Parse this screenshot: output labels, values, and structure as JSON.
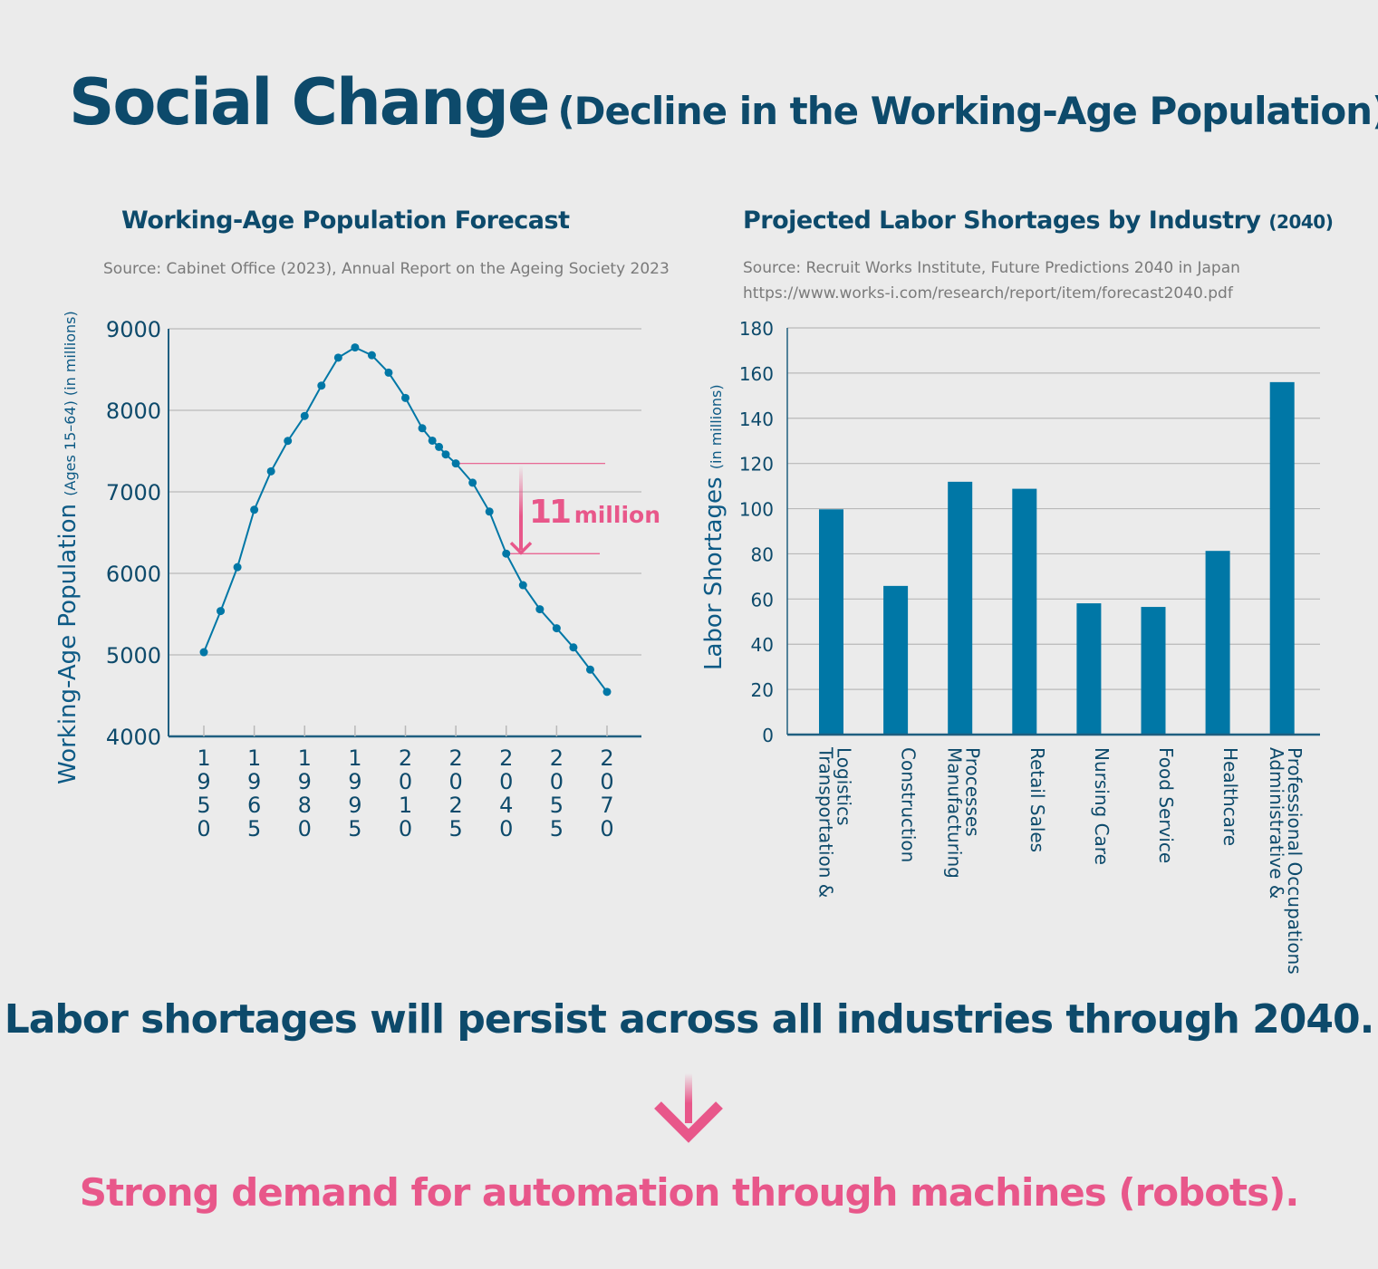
{
  "header": {
    "title": "Social Change",
    "subtitle": "(Decline in the Working-Age Population)"
  },
  "colors": {
    "dark": "#0d4a6b",
    "accent": "#e8578a",
    "series": "#0077a6",
    "grid": "#b9b9b9"
  },
  "left_panel": {
    "title": "Working-Age Population Forecast",
    "source": "Source: Cabinet Office (2023), Annual Report on the Ageing Society 2023",
    "annotation_number": "11",
    "annotation_unit": "million"
  },
  "right_panel": {
    "title": "Projected Labor Shortages by Industry",
    "title_suffix": "(2040)",
    "source_line1": "Source: Recruit Works Institute, Future Predictions 2040 in Japan",
    "source_line2": "https://www.works-i.com/research/report/item/forecast2040.pdf"
  },
  "footer": {
    "statement": "Labor shortages will persist across all industries through 2040.",
    "conclusion": "Strong demand for automation through machines (robots)."
  },
  "chart_data": [
    {
      "type": "line",
      "ylabel": "Working-Age Population",
      "ylabel_suffix": "(Ages 15–64) (in millions)",
      "xlabel": "",
      "ylim": [
        4000,
        9000
      ],
      "yticks": [
        4000,
        5000,
        6000,
        7000,
        8000,
        9000
      ],
      "xlim": [
        1950,
        2070
      ],
      "xticks": [
        "1950",
        "1965",
        "1980",
        "1995",
        "2010",
        "2025",
        "2040",
        "2055",
        "2070"
      ],
      "grid": true,
      "x": [
        1950,
        1955,
        1960,
        1965,
        1970,
        1975,
        1980,
        1985,
        1990,
        1995,
        2000,
        2005,
        2010,
        2015,
        2018,
        2020,
        2022,
        2025,
        2030,
        2035,
        2040,
        2045,
        2050,
        2055,
        2060,
        2065,
        2070
      ],
      "y": [
        5033,
        5538,
        6076,
        6780,
        7252,
        7625,
        7931,
        8303,
        8646,
        8771,
        8676,
        8462,
        8152,
        7780,
        7628,
        7551,
        7459,
        7348,
        7112,
        6758,
        6242,
        5855,
        5560,
        5327,
        5091,
        4819,
        4546
      ],
      "annotation": {
        "from_x": 2025,
        "to_x": 2040,
        "label": "11 million"
      }
    },
    {
      "type": "bar",
      "ylabel": "Labor Shortages",
      "ylabel_suffix": "(in millions)",
      "xlabel": "",
      "ylim": [
        0,
        180
      ],
      "yticks": [
        0,
        20,
        40,
        60,
        80,
        100,
        120,
        140,
        160,
        180
      ],
      "grid": true,
      "categories": [
        "Transportation & Logistics",
        "Construction",
        "Manufacturing Processes",
        "Retail Sales",
        "Nursing Care",
        "Food Service",
        "Healthcare",
        "Administrative & Professional Occupations"
      ],
      "category_lines": [
        [
          "Transportation &",
          "Logistics"
        ],
        [
          "Construction"
        ],
        [
          "Manufacturing",
          "Processes"
        ],
        [
          "Retail Sales"
        ],
        [
          "Nursing Care"
        ],
        [
          "Food Service"
        ],
        [
          "Healthcare"
        ],
        [
          "Administrative &",
          "Professional Occupations"
        ]
      ],
      "values": [
        99.7,
        65.8,
        111.9,
        108.8,
        58.1,
        56.5,
        81.3,
        156.0
      ]
    }
  ]
}
